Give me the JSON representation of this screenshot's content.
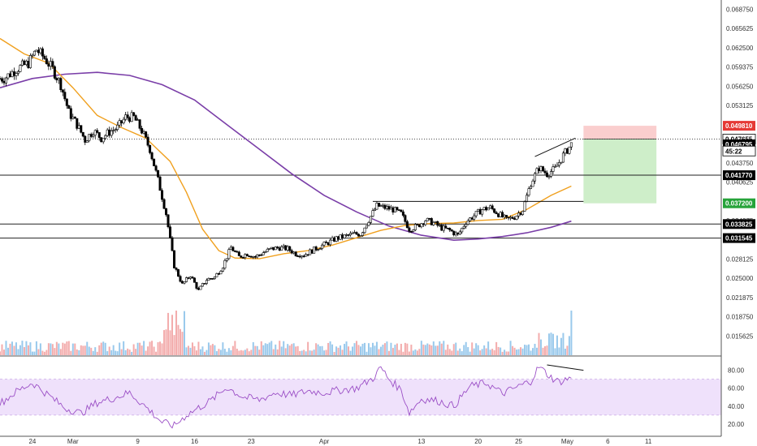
{
  "colors": {
    "up": "#ffffff",
    "down": "#000000",
    "wick": "#000000",
    "ma_fast": "#f0a01e",
    "ma_slow": "#7a3ea8",
    "vol_up": "#8ec3ea",
    "vol_down": "#f2a3a3",
    "rsi_line": "#9b4fc6",
    "rsi_band": "#efe1fb",
    "stop_zone": "#f9c9c9",
    "target_zone": "#c9ecc3",
    "stop_badge": "#e53935",
    "target_badge": "#26a33a",
    "level_badge": "#000000"
  },
  "price_axis": {
    "ticks": [
      "0.068750",
      "0.065625",
      "0.062500",
      "0.059375",
      "0.056250",
      "0.053125",
      "0.043750",
      "0.040625",
      "0.034375",
      "0.028125",
      "0.025000",
      "0.021875",
      "0.018750",
      "0.015625"
    ],
    "tick_values": [
      0.06875,
      0.065625,
      0.0625,
      0.059375,
      0.05625,
      0.053125,
      0.04375,
      0.040625,
      0.034375,
      0.028125,
      0.025,
      0.021875,
      0.01875,
      0.015625
    ],
    "ylim": [
      0.0125,
      0.07
    ]
  },
  "price_badges": [
    {
      "label": "0.049810",
      "value": 0.04981,
      "style": "stop"
    },
    {
      "label": "0.047655",
      "value": 0.047655,
      "style": "current"
    },
    {
      "label": "0.046795",
      "value": 0.046795,
      "style": "level"
    },
    {
      "label": "45:22",
      "value": 0.0457,
      "style": "timer"
    },
    {
      "label": "0.041770",
      "value": 0.04177,
      "style": "level"
    },
    {
      "label": "0.037200",
      "value": 0.0372,
      "style": "target"
    },
    {
      "label": "0.033825",
      "value": 0.033825,
      "style": "level"
    },
    {
      "label": "0.031545",
      "value": 0.031545,
      "style": "level"
    }
  ],
  "horizontal_levels": [
    0.04177,
    0.033825,
    0.031545
  ],
  "rsi_axis": {
    "ticks": [
      "80.00",
      "60.00",
      "40.00",
      "20.00"
    ],
    "tick_values": [
      80,
      60,
      40,
      20
    ],
    "band": [
      30,
      70
    ],
    "ylim": [
      10,
      95
    ]
  },
  "date_axis": [
    {
      "label": "24",
      "day": -5
    },
    {
      "label": "Mar",
      "day": 0
    },
    {
      "label": "9",
      "day": 8
    },
    {
      "label": "16",
      "day": 15
    },
    {
      "label": "23",
      "day": 22
    },
    {
      "label": "Apr",
      "day": 31
    },
    {
      "label": "13",
      "day": 43
    },
    {
      "label": "20",
      "day": 50
    },
    {
      "label": "25",
      "day": 55
    },
    {
      "label": "May",
      "day": 61
    },
    {
      "label": "6",
      "day": 66
    },
    {
      "label": "11",
      "day": 71
    }
  ],
  "chart_data": {
    "type": "candlestick",
    "x_unit": "days from Mar 1",
    "xlim": [
      -9,
      80
    ],
    "price_path": [
      [
        -8.5,
        0.0575
      ],
      [
        -7,
        0.059
      ],
      [
        -5.5,
        0.06
      ],
      [
        -4.5,
        0.0622
      ],
      [
        -3.5,
        0.0608
      ],
      [
        -2.5,
        0.059
      ],
      [
        -1.5,
        0.0565
      ],
      [
        -0.5,
        0.052
      ],
      [
        0.5,
        0.05
      ],
      [
        1.5,
        0.0475
      ],
      [
        2.5,
        0.049
      ],
      [
        3.5,
        0.0478
      ],
      [
        4.5,
        0.0488
      ],
      [
        5.5,
        0.0495
      ],
      [
        6.5,
        0.0512
      ],
      [
        7.5,
        0.0512
      ],
      [
        8.5,
        0.049
      ],
      [
        9.5,
        0.046
      ],
      [
        10.5,
        0.041
      ],
      [
        11.5,
        0.0355
      ],
      [
        12.5,
        0.027
      ],
      [
        13.5,
        0.024
      ],
      [
        14.5,
        0.0255
      ],
      [
        15.5,
        0.023
      ],
      [
        16.5,
        0.0248
      ],
      [
        17.5,
        0.0252
      ],
      [
        18.5,
        0.027
      ],
      [
        19.5,
        0.03
      ],
      [
        20.5,
        0.0285
      ],
      [
        21.5,
        0.029
      ],
      [
        22.5,
        0.0285
      ],
      [
        23.5,
        0.0292
      ],
      [
        24.5,
        0.0298
      ],
      [
        25.5,
        0.03
      ],
      [
        26.5,
        0.0298
      ],
      [
        27.5,
        0.029
      ],
      [
        28.5,
        0.0288
      ],
      [
        29.5,
        0.0295
      ],
      [
        30.5,
        0.0302
      ],
      [
        31.5,
        0.0308
      ],
      [
        32.5,
        0.0315
      ],
      [
        33.5,
        0.0318
      ],
      [
        34.5,
        0.0322
      ],
      [
        35.5,
        0.0322
      ],
      [
        36.5,
        0.0345
      ],
      [
        37.5,
        0.0368
      ],
      [
        38.5,
        0.0365
      ],
      [
        39.5,
        0.0362
      ],
      [
        40.5,
        0.0355
      ],
      [
        41.5,
        0.033
      ],
      [
        42.5,
        0.0335
      ],
      [
        43.5,
        0.0345
      ],
      [
        44.5,
        0.034
      ],
      [
        45.5,
        0.0332
      ],
      [
        46.5,
        0.0328
      ],
      [
        47.5,
        0.032
      ],
      [
        48.5,
        0.0342
      ],
      [
        49.5,
        0.0352
      ],
      [
        50.5,
        0.0362
      ],
      [
        51.5,
        0.0365
      ],
      [
        52.5,
        0.0355
      ],
      [
        53.5,
        0.0345
      ],
      [
        54.5,
        0.035
      ],
      [
        55.5,
        0.0362
      ],
      [
        56.5,
        0.0405
      ],
      [
        57.5,
        0.043
      ],
      [
        58.5,
        0.042
      ],
      [
        59.5,
        0.0428
      ],
      [
        60.5,
        0.045
      ],
      [
        61.5,
        0.0468
      ]
    ],
    "ma_fast": [
      [
        -9,
        0.064
      ],
      [
        -6,
        0.0615
      ],
      [
        -3,
        0.06
      ],
      [
        0,
        0.056
      ],
      [
        3,
        0.0515
      ],
      [
        6,
        0.0495
      ],
      [
        9,
        0.0478
      ],
      [
        12,
        0.044
      ],
      [
        14,
        0.039
      ],
      [
        16,
        0.033
      ],
      [
        18,
        0.0295
      ],
      [
        20,
        0.0283
      ],
      [
        23,
        0.0282
      ],
      [
        26,
        0.029
      ],
      [
        29,
        0.0295
      ],
      [
        32,
        0.0304
      ],
      [
        35,
        0.0316
      ],
      [
        38,
        0.0328
      ],
      [
        41,
        0.0336
      ],
      [
        44,
        0.0339
      ],
      [
        47,
        0.034
      ],
      [
        50,
        0.0344
      ],
      [
        53,
        0.0346
      ],
      [
        56,
        0.0362
      ],
      [
        59,
        0.0385
      ],
      [
        61.5,
        0.04
      ]
    ],
    "ma_slow": [
      [
        -9,
        0.056
      ],
      [
        -5,
        0.0575
      ],
      [
        -1,
        0.0582
      ],
      [
        3,
        0.0585
      ],
      [
        7,
        0.058
      ],
      [
        11,
        0.0565
      ],
      [
        15,
        0.054
      ],
      [
        19,
        0.05
      ],
      [
        23,
        0.046
      ],
      [
        27,
        0.042
      ],
      [
        31,
        0.0385
      ],
      [
        35,
        0.0358
      ],
      [
        39,
        0.0335
      ],
      [
        43,
        0.032
      ],
      [
        47,
        0.0312
      ],
      [
        50,
        0.0314
      ],
      [
        53,
        0.0318
      ],
      [
        56,
        0.0324
      ],
      [
        59,
        0.0333
      ],
      [
        61.5,
        0.0343
      ]
    ],
    "volume": {
      "ylim": [
        0,
        70000
      ]
    },
    "rsi_path": [
      [
        -9,
        43
      ],
      [
        -7,
        56
      ],
      [
        -5,
        66
      ],
      [
        -3,
        52
      ],
      [
        -1,
        38
      ],
      [
        1,
        32
      ],
      [
        3,
        44
      ],
      [
        5,
        49
      ],
      [
        7,
        55
      ],
      [
        9,
        39
      ],
      [
        11,
        22
      ],
      [
        12.5,
        18
      ],
      [
        14,
        30
      ],
      [
        15.5,
        38
      ],
      [
        17,
        46
      ],
      [
        19,
        61
      ],
      [
        21,
        50
      ],
      [
        23,
        47
      ],
      [
        25,
        55
      ],
      [
        27,
        52
      ],
      [
        29,
        57
      ],
      [
        31,
        55
      ],
      [
        33,
        58
      ],
      [
        35,
        60
      ],
      [
        37,
        71
      ],
      [
        38,
        83
      ],
      [
        39,
        70
      ],
      [
        40.5,
        58
      ],
      [
        41.5,
        33
      ],
      [
        43,
        48
      ],
      [
        45,
        46
      ],
      [
        47,
        40
      ],
      [
        49,
        62
      ],
      [
        51,
        66
      ],
      [
        53,
        54
      ],
      [
        55,
        62
      ],
      [
        56.5,
        68
      ],
      [
        57.5,
        84
      ],
      [
        59,
        72
      ],
      [
        60,
        67
      ],
      [
        61.5,
        72
      ]
    ],
    "trade_box": {
      "entry": 0.047655,
      "stop": 0.04981,
      "target": 0.0372,
      "x_start": 63,
      "x_end": 72
    },
    "trendlines": [
      {
        "x1": 37,
        "y1": 0.0375,
        "x2": 63,
        "y2": 0.0375
      },
      {
        "x1": 57,
        "y1": 0.0448,
        "x2": 62,
        "y2": 0.0478
      }
    ],
    "rsi_trendline": {
      "x1": 58.5,
      "y1": 86,
      "x2": 63,
      "y2": 80
    }
  }
}
